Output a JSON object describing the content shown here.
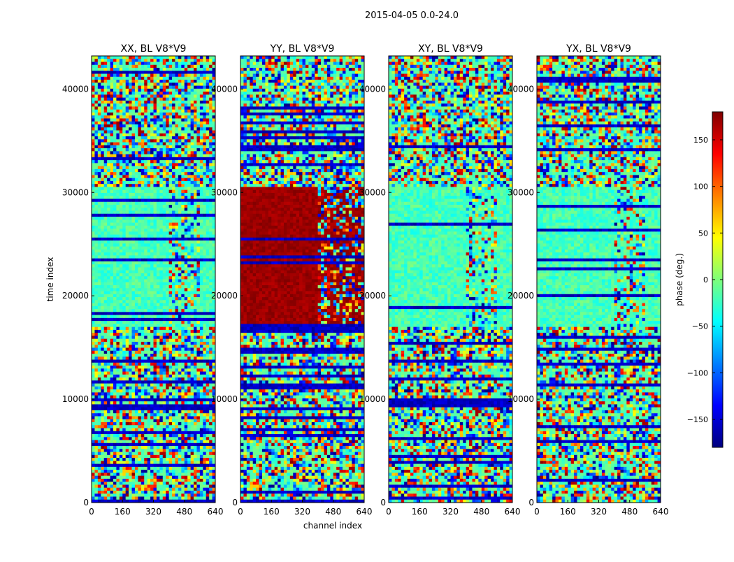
{
  "figure_title": "2015-04-05 0.0-24.0",
  "chart_data": [
    {
      "type": "heatmap",
      "title": "XX, BL V8*V9",
      "xlabel": "",
      "ylabel": "time index",
      "xlim": [
        0,
        640
      ],
      "ylim": [
        0,
        43200
      ],
      "xticks": [
        0,
        160,
        320,
        480,
        640
      ],
      "yticks": [
        0,
        10000,
        20000,
        30000,
        40000
      ],
      "color_range": [
        -180,
        180
      ],
      "notes": "phase noise across most rows; smoother near-zero phase band from ~17000 to ~30500; vertical striping from channel ~400-520 in the smooth band"
    },
    {
      "type": "heatmap",
      "title": "YY, BL V8*V9",
      "xlabel": "channel index",
      "ylabel": "",
      "xlim": [
        0,
        640
      ],
      "ylim": [
        0,
        43200
      ],
      "xticks": [
        0,
        160,
        320,
        480,
        640
      ],
      "yticks": [
        0,
        10000,
        20000,
        30000,
        40000
      ],
      "color_range": [
        -180,
        180
      ],
      "notes": "band from ~17000 to ~30500 saturated near +180 deg (dark red)"
    },
    {
      "type": "heatmap",
      "title": "XY, BL V8*V9",
      "xlabel": "",
      "ylabel": "",
      "xlim": [
        0,
        640
      ],
      "ylim": [
        0,
        43200
      ],
      "xticks": [
        0,
        160,
        320,
        480,
        640
      ],
      "yticks": [
        0,
        10000,
        20000,
        30000,
        40000
      ],
      "color_range": [
        -180,
        180
      ],
      "notes": "smooth band ~17000-30500 with noisy columns between channels ~400-600"
    },
    {
      "type": "heatmap",
      "title": "YX, BL V8*V9",
      "xlabel": "",
      "ylabel": "",
      "xlim": [
        0,
        640
      ],
      "ylim": [
        0,
        43200
      ],
      "xticks": [
        0,
        160,
        320,
        480,
        640
      ],
      "yticks": [
        0,
        10000,
        20000,
        30000,
        40000
      ],
      "color_range": [
        -180,
        180
      ],
      "notes": "smooth band ~17000-30500 with noisy columns between channels ~400-600"
    }
  ],
  "colorbar": {
    "label": "phase (deg.)",
    "range": [
      -180,
      180
    ],
    "ticks": [
      150,
      100,
      50,
      0,
      -50,
      -100,
      -150
    ],
    "tick_labels": [
      "150",
      "100",
      "50",
      "0",
      "−50",
      "−100",
      "−150"
    ]
  },
  "colors": {
    "dark_blue": "#00007f",
    "blue": "#0000ff",
    "cyan": "#00d4ff",
    "green_cyan": "#7dff7a",
    "yellow": "#ffe600",
    "orange": "#ff7b00",
    "dark_red": "#7f0000"
  }
}
